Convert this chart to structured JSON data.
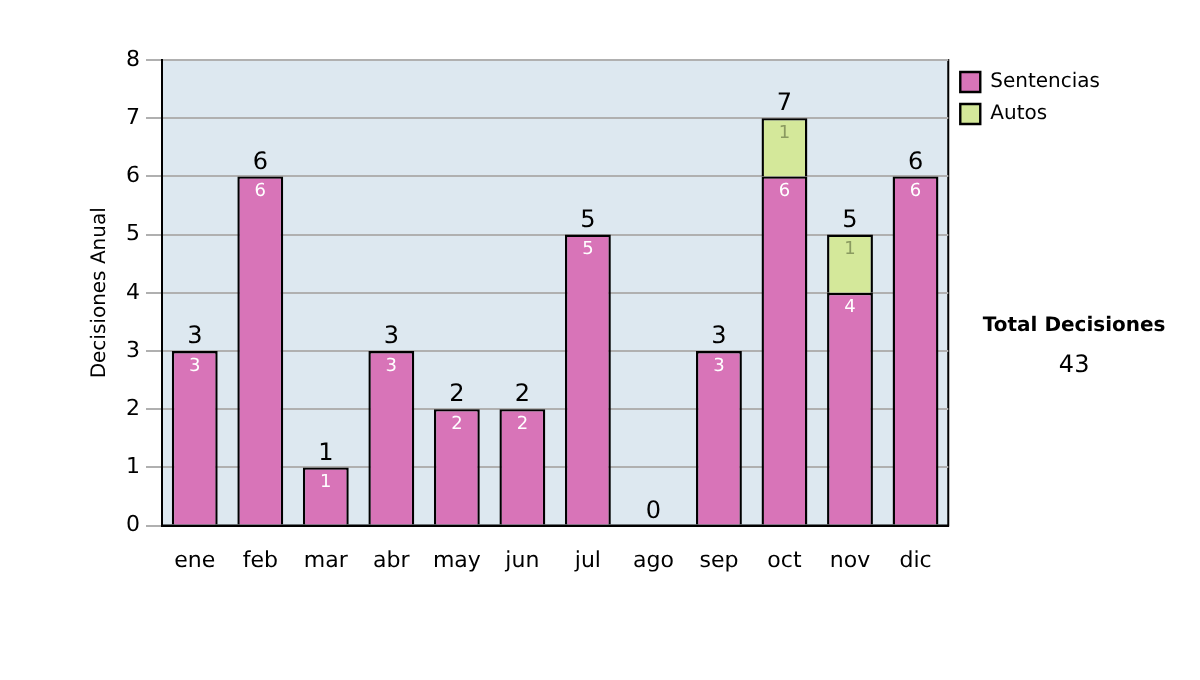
{
  "chart_data": {
    "type": "bar",
    "stacked": true,
    "ylabel": "Decisiones Anual",
    "categories": [
      "ene",
      "feb",
      "mar",
      "abr",
      "may",
      "jun",
      "jul",
      "ago",
      "sep",
      "oct",
      "nov",
      "dic"
    ],
    "series": [
      {
        "name": "Sentencias",
        "color": "#d874b8",
        "values": [
          3,
          6,
          1,
          3,
          2,
          2,
          5,
          0,
          3,
          6,
          4,
          6
        ],
        "value_labels": [
          "3",
          "6",
          "1",
          "3",
          "2",
          "2",
          "5",
          null,
          "3",
          "6",
          "4",
          "6"
        ]
      },
      {
        "name": "Autos",
        "color": "#d4e89a",
        "values": [
          null,
          null,
          null,
          null,
          null,
          null,
          null,
          null,
          null,
          1,
          1,
          null
        ],
        "value_labels": [
          null,
          null,
          null,
          null,
          null,
          null,
          null,
          null,
          null,
          "1",
          "1",
          null
        ]
      }
    ],
    "totals": [
      "3",
      "6",
      "1",
      "3",
      "2",
      "2",
      "5",
      "0",
      "3",
      "7",
      "5",
      "6"
    ],
    "ylim": [
      0,
      8
    ],
    "yticks": [
      0,
      1,
      2,
      3,
      4,
      5,
      6,
      7,
      8
    ],
    "grid": "y",
    "legend": "right",
    "annotations": [
      "Total Decisiones",
      "43"
    ]
  }
}
